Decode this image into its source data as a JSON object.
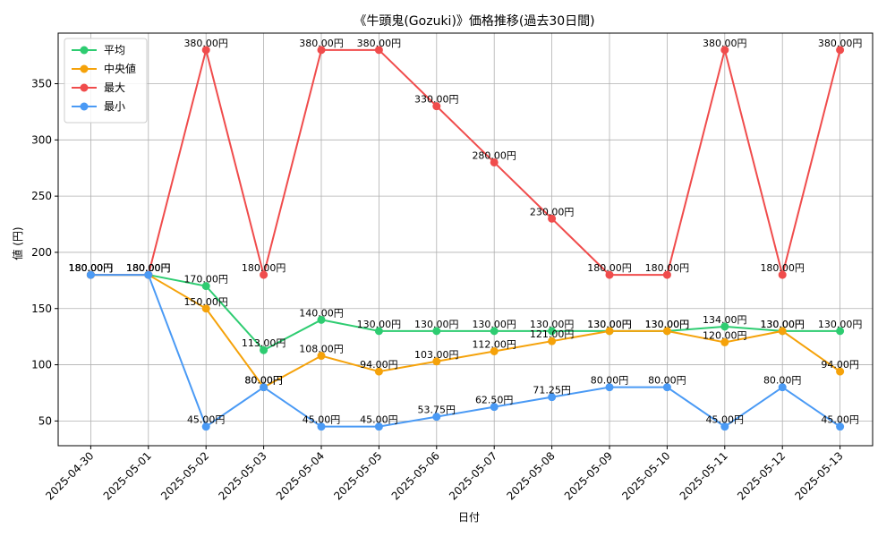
{
  "chart_data": {
    "type": "line",
    "title": "《牛頭鬼(Gozuki)》価格推移(過去30日間)",
    "xlabel": "日付",
    "ylabel": "値 (円)",
    "ylim": [
      28,
      395
    ],
    "yticks": [
      50,
      100,
      150,
      200,
      250,
      300,
      350
    ],
    "grid": true,
    "legend_position": "top-left",
    "value_suffix": "円",
    "categories": [
      "2025-04-30",
      "2025-05-01",
      "2025-05-02",
      "2025-05-03",
      "2025-05-04",
      "2025-05-05",
      "2025-05-06",
      "2025-05-07",
      "2025-05-08",
      "2025-05-09",
      "2025-05-10",
      "2025-05-11",
      "2025-05-12",
      "2025-05-13"
    ],
    "series": [
      {
        "name": "平均",
        "color": "#2ecc71",
        "values": [
          180,
          180,
          170,
          113,
          140,
          130,
          130,
          130,
          130,
          130,
          130,
          134,
          130,
          130
        ]
      },
      {
        "name": "中央値",
        "color": "#f5a20a",
        "values": [
          180,
          180,
          150,
          80,
          108,
          94,
          103,
          112,
          121,
          130,
          130,
          120,
          130,
          94
        ]
      },
      {
        "name": "最大",
        "color": "#f04c4c",
        "values": [
          180,
          180,
          380,
          180,
          380,
          380,
          330,
          280,
          230,
          180,
          180,
          380,
          180,
          380
        ]
      },
      {
        "name": "最小",
        "color": "#4a9af5",
        "values": [
          180,
          180,
          45,
          80,
          45,
          45,
          53.75,
          62.5,
          71.25,
          80,
          80,
          45,
          80,
          45
        ]
      }
    ]
  }
}
